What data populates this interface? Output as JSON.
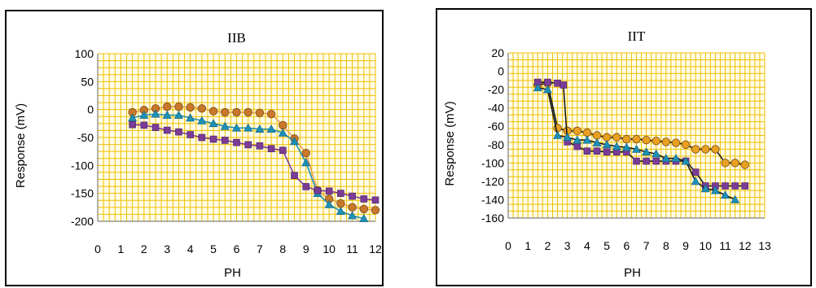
{
  "chart_data": [
    {
      "type": "line",
      "title": "IIB",
      "xlabel": "PH",
      "ylabel": "Response (mV)",
      "xlim": [
        0,
        12
      ],
      "ylim": [
        -200,
        100
      ],
      "x_ticks": [
        "0",
        "1",
        "2",
        "3",
        "4",
        "5",
        "6",
        "7",
        "8",
        "9",
        "10",
        "11",
        "12"
      ],
      "y_ticks": [
        "100",
        "50",
        "0",
        "-50",
        "-100",
        "-150",
        "-200"
      ],
      "grid": true,
      "series": [
        {
          "marker": "circle",
          "color": "#c8782a",
          "line_color": "#e8a257",
          "points": [
            [
              1.5,
              -5
            ],
            [
              2,
              -1
            ],
            [
              2.5,
              2
            ],
            [
              3,
              5
            ],
            [
              3.5,
              5
            ],
            [
              4,
              4
            ],
            [
              4.5,
              2
            ],
            [
              5,
              -3
            ],
            [
              5.5,
              -5
            ],
            [
              6,
              -5
            ],
            [
              6.5,
              -5
            ],
            [
              7,
              -6
            ],
            [
              7.5,
              -8
            ],
            [
              8,
              -28
            ],
            [
              8.5,
              -52
            ],
            [
              9,
              -78
            ],
            [
              9.5,
              -145
            ],
            [
              10,
              -160
            ],
            [
              10.5,
              -168
            ],
            [
              11,
              -175
            ],
            [
              11.5,
              -178
            ],
            [
              12,
              -180
            ]
          ]
        },
        {
          "marker": "triangle",
          "color": "#1e90b6",
          "line_color": "#1e90b6",
          "points": [
            [
              1.5,
              -15
            ],
            [
              2,
              -10
            ],
            [
              2.5,
              -8
            ],
            [
              3,
              -10
            ],
            [
              3.5,
              -10
            ],
            [
              4,
              -15
            ],
            [
              4.5,
              -20
            ],
            [
              5,
              -25
            ],
            [
              5.5,
              -30
            ],
            [
              6,
              -33
            ],
            [
              6.5,
              -33
            ],
            [
              7,
              -35
            ],
            [
              7.5,
              -35
            ],
            [
              8,
              -42
            ],
            [
              8.5,
              -57
            ],
            [
              9,
              -95
            ],
            [
              9.5,
              -150
            ],
            [
              10,
              -170
            ],
            [
              10.5,
              -182
            ],
            [
              11,
              -190
            ],
            [
              11.5,
              -195
            ]
          ]
        },
        {
          "marker": "square",
          "color": "#7a3c96",
          "line_color": "#7a3c96",
          "points": [
            [
              1.5,
              -27
            ],
            [
              2,
              -28
            ],
            [
              2.5,
              -32
            ],
            [
              3,
              -37
            ],
            [
              3.5,
              -40
            ],
            [
              4,
              -45
            ],
            [
              4.5,
              -50
            ],
            [
              5,
              -53
            ],
            [
              5.5,
              -55
            ],
            [
              6,
              -59
            ],
            [
              6.5,
              -63
            ],
            [
              7,
              -65
            ],
            [
              7.5,
              -70
            ],
            [
              8,
              -73
            ],
            [
              8.5,
              -118
            ],
            [
              9,
              -138
            ],
            [
              9.5,
              -145
            ],
            [
              10,
              -146
            ],
            [
              10.5,
              -150
            ],
            [
              11,
              -155
            ],
            [
              11.5,
              -160
            ],
            [
              12,
              -162
            ]
          ]
        }
      ]
    },
    {
      "type": "line",
      "title": "IIT",
      "xlabel": "PH",
      "ylabel": "Response (mV)",
      "xlim": [
        0,
        13
      ],
      "ylim": [
        -160,
        20
      ],
      "x_ticks": [
        "0",
        "1",
        "2",
        "3",
        "4",
        "5",
        "6",
        "7",
        "8",
        "9",
        "10",
        "11",
        "12",
        "13"
      ],
      "y_ticks": [
        "20",
        "0",
        "-20",
        "-40",
        "-60",
        "-80",
        "-100",
        "-120",
        "-140",
        "-160"
      ],
      "grid": true,
      "series": [
        {
          "marker": "circle",
          "color": "#e8a020",
          "line_color": "#1a1a1a",
          "points": [
            [
              1.5,
              -15
            ],
            [
              2,
              -13
            ],
            [
              2.5,
              -62
            ],
            [
              3,
              -65
            ],
            [
              3.5,
              -65
            ],
            [
              4,
              -67
            ],
            [
              4.5,
              -70
            ],
            [
              5,
              -72
            ],
            [
              5.5,
              -72
            ],
            [
              6,
              -74
            ],
            [
              6.5,
              -74
            ],
            [
              7,
              -75
            ],
            [
              7.5,
              -76
            ],
            [
              8,
              -77
            ],
            [
              8.5,
              -78
            ],
            [
              9,
              -80
            ],
            [
              9.5,
              -85
            ],
            [
              10,
              -85
            ],
            [
              10.5,
              -85
            ],
            [
              11,
              -100
            ],
            [
              11.5,
              -100
            ],
            [
              12,
              -102
            ]
          ]
        },
        {
          "marker": "square",
          "color": "#7a3c96",
          "line_color": "#1a1a1a",
          "points": [
            [
              1.5,
              -12
            ],
            [
              2,
              -12
            ],
            [
              2.5,
              -13
            ],
            [
              2.8,
              -15
            ],
            [
              3,
              -77
            ],
            [
              3.5,
              -82
            ],
            [
              4,
              -87
            ],
            [
              4.5,
              -87
            ],
            [
              5,
              -88
            ],
            [
              5.5,
              -88
            ],
            [
              6,
              -88
            ],
            [
              6.5,
              -98
            ],
            [
              7,
              -98
            ],
            [
              7.5,
              -98
            ],
            [
              8,
              -98
            ],
            [
              8.5,
              -98
            ],
            [
              9,
              -98
            ],
            [
              9.5,
              -110
            ],
            [
              10,
              -125
            ],
            [
              10.5,
              -125
            ],
            [
              11,
              -125
            ],
            [
              11.5,
              -125
            ],
            [
              12,
              -125
            ]
          ]
        },
        {
          "marker": "triangle",
          "color": "#1e90b6",
          "line_color": "#1a1a1a",
          "points": [
            [
              1.5,
              -18
            ],
            [
              2,
              -20
            ],
            [
              2.5,
              -70
            ],
            [
              3,
              -72
            ],
            [
              3.5,
              -75
            ],
            [
              4,
              -75
            ],
            [
              4.5,
              -78
            ],
            [
              5,
              -80
            ],
            [
              5.5,
              -82
            ],
            [
              6,
              -83
            ],
            [
              6.5,
              -85
            ],
            [
              7,
              -88
            ],
            [
              7.5,
              -90
            ],
            [
              8,
              -95
            ],
            [
              8.5,
              -95
            ],
            [
              9,
              -98
            ],
            [
              9.5,
              -120
            ],
            [
              10,
              -128
            ],
            [
              10.5,
              -130
            ],
            [
              11,
              -135
            ],
            [
              11.5,
              -140
            ]
          ]
        }
      ]
    }
  ]
}
